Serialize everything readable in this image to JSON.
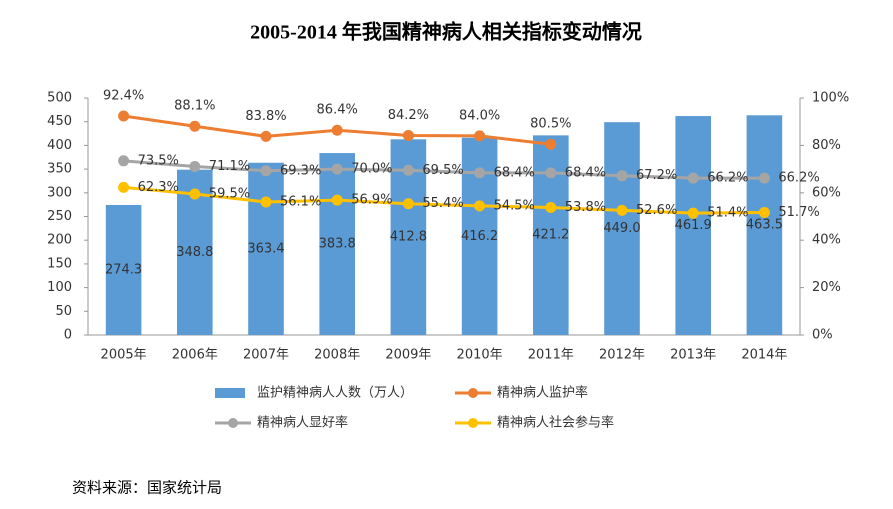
{
  "chart_data": {
    "type": "bar",
    "title": "2005-2014 年我国精神病人相关指标变动情况",
    "source": "资料来源：国家统计局",
    "categories": [
      "2005年",
      "2006年",
      "2007年",
      "2008年",
      "2009年",
      "2010年",
      "2011年",
      "2012年",
      "2013年",
      "2014年"
    ],
    "series": [
      {
        "name": "监护精神病人人数（万人）",
        "type": "bar",
        "color": "#5b9bd5",
        "values": [
          274.3,
          348.8,
          363.4,
          383.8,
          412.8,
          416.2,
          421.2,
          449.0,
          461.9,
          463.5
        ],
        "value_labels": [
          "274.3",
          "348.8",
          "363.4",
          "383.8",
          "412.8",
          "416.2",
          "421.2",
          "449.0",
          "461.9",
          "463.5"
        ]
      },
      {
        "name": "精神病人监护率",
        "type": "line",
        "axis": "y2",
        "color": "#ed7d31",
        "values": [
          92.4,
          88.1,
          83.8,
          86.4,
          84.2,
          84.0,
          80.5,
          null,
          null,
          null
        ],
        "value_labels": [
          "92.4%",
          "88.1%",
          "83.8%",
          "86.4%",
          "84.2%",
          "84.0%",
          "80.5%",
          null,
          null,
          null
        ]
      },
      {
        "name": "精神病人显好率",
        "type": "line",
        "axis": "y2",
        "color": "#a5a5a5",
        "values": [
          73.5,
          71.1,
          69.3,
          70.0,
          69.5,
          68.4,
          68.4,
          67.2,
          66.2,
          66.2
        ],
        "value_labels": [
          "73.5%",
          "71.1%",
          "69.3%",
          "70.0%",
          "69.5%",
          "68.4%",
          "68.4%",
          "67.2%",
          "66.2%",
          "66.2%"
        ]
      },
      {
        "name": "精神病人社会参与率",
        "type": "line",
        "axis": "y2",
        "color": "#ffc000",
        "values": [
          62.3,
          59.5,
          56.1,
          56.9,
          55.4,
          54.5,
          53.8,
          52.6,
          51.4,
          51.7
        ],
        "value_labels": [
          "62.3%",
          "59.5%",
          "56.1%",
          "56.9%",
          "55.4%",
          "54.5%",
          "53.8%",
          "52.6%",
          "51.4%",
          "51.7%"
        ]
      }
    ],
    "ylim": [
      0,
      500
    ],
    "yticks": [
      0,
      50,
      100,
      150,
      200,
      250,
      300,
      350,
      400,
      450,
      500
    ],
    "y2lim": [
      0,
      100
    ],
    "y2ticks": [
      {
        "value": 0,
        "label": "0%"
      },
      {
        "value": 20,
        "label": "20%"
      },
      {
        "value": 40,
        "label": "40%"
      },
      {
        "value": 60,
        "label": "60%"
      },
      {
        "value": 80,
        "label": "80%"
      },
      {
        "value": 100,
        "label": "100%"
      }
    ]
  }
}
